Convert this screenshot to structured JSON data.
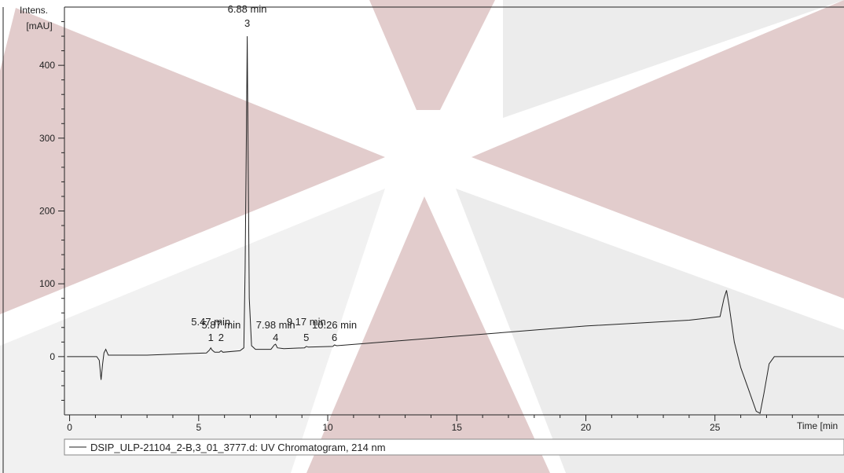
{
  "chart_data": {
    "type": "line",
    "title": "",
    "xlabel": "Time [min",
    "ylabel": [
      "Intens.",
      "[mAU]"
    ],
    "xlim": [
      -0.2,
      30.0
    ],
    "ylim": [
      -80,
      480
    ],
    "x_ticks": [
      0,
      5,
      10,
      15,
      20,
      25
    ],
    "y_ticks": [
      0,
      100,
      200,
      300,
      400
    ],
    "grid": false,
    "legend": {
      "placement": "bottom",
      "entries": [
        "DSIP_ULP-21104_2-B,3_01_3777.d: UV Chromatogram, 214 nm"
      ]
    },
    "series": [
      {
        "name": "DSIP_ULP-21104_2-B,3_01_3777.d: UV Chromatogram, 214 nm",
        "points": [
          [
            -0.1,
            0
          ],
          [
            0.9,
            0
          ],
          [
            1.05,
            0
          ],
          [
            1.15,
            -5
          ],
          [
            1.22,
            -32
          ],
          [
            1.28,
            -10
          ],
          [
            1.33,
            5
          ],
          [
            1.4,
            10
          ],
          [
            1.5,
            2
          ],
          [
            1.6,
            2
          ],
          [
            3.0,
            2
          ],
          [
            4.5,
            4
          ],
          [
            5.3,
            5
          ],
          [
            5.42,
            9
          ],
          [
            5.47,
            12
          ],
          [
            5.52,
            9
          ],
          [
            5.62,
            6
          ],
          [
            5.8,
            6
          ],
          [
            5.87,
            8
          ],
          [
            5.94,
            6
          ],
          [
            6.6,
            8
          ],
          [
            6.75,
            12
          ],
          [
            6.8,
            120
          ],
          [
            6.85,
            310
          ],
          [
            6.88,
            440
          ],
          [
            6.91,
            310
          ],
          [
            6.96,
            80
          ],
          [
            7.05,
            15
          ],
          [
            7.2,
            10
          ],
          [
            7.8,
            10
          ],
          [
            7.93,
            16
          ],
          [
            7.98,
            17
          ],
          [
            8.05,
            12
          ],
          [
            8.3,
            11
          ],
          [
            9.1,
            12
          ],
          [
            9.17,
            14
          ],
          [
            9.25,
            13
          ],
          [
            10.2,
            14
          ],
          [
            10.26,
            16
          ],
          [
            10.35,
            15
          ],
          [
            15.0,
            28
          ],
          [
            20.0,
            42
          ],
          [
            24.0,
            50
          ],
          [
            25.2,
            55
          ],
          [
            25.35,
            80
          ],
          [
            25.45,
            91
          ],
          [
            25.55,
            70
          ],
          [
            25.75,
            20
          ],
          [
            26.0,
            -15
          ],
          [
            26.3,
            -45
          ],
          [
            26.6,
            -75
          ],
          [
            26.75,
            -78
          ],
          [
            26.9,
            -50
          ],
          [
            27.1,
            -10
          ],
          [
            27.3,
            0
          ],
          [
            30.0,
            0
          ]
        ]
      }
    ],
    "peaks": [
      {
        "number": "1",
        "label": "5.47 min",
        "x": 5.47,
        "y": 12
      },
      {
        "number": "2",
        "label": "5.87 min",
        "x": 5.87,
        "y": 8
      },
      {
        "number": "3",
        "label": "6.88 min",
        "x": 6.88,
        "y": 440
      },
      {
        "number": "4",
        "label": "7.98 min",
        "x": 7.98,
        "y": 17
      },
      {
        "number": "5",
        "label": "9.17 min",
        "x": 9.17,
        "y": 14
      },
      {
        "number": "6",
        "label": "10.26 min",
        "x": 10.26,
        "y": 16
      }
    ]
  },
  "colors": {
    "background_shape": "#e2cccc",
    "background_light": "#ececec",
    "trace": "#222222"
  }
}
